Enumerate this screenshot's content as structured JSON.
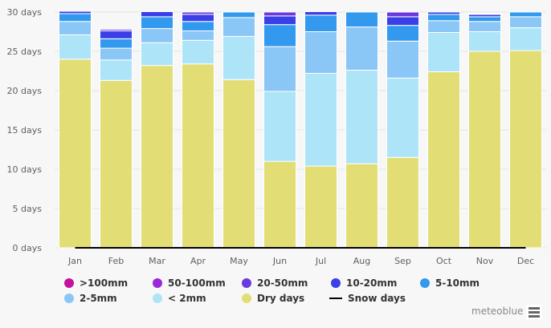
{
  "chart_data": {
    "type": "bar",
    "stacked": true,
    "title": "",
    "xlabel": "",
    "ylabel": "",
    "ylim": [
      0,
      30
    ],
    "yticks": [
      0,
      5,
      10,
      15,
      20,
      25,
      30
    ],
    "ytick_suffix": " days",
    "ytick_labels": [
      "0 days",
      "5 days",
      "10 days",
      "15 days",
      "20 days",
      "25 days",
      "30 days"
    ],
    "grid": true,
    "legend_position": "bottom",
    "categories": [
      "Jan",
      "Feb",
      "Mar",
      "Apr",
      "May",
      "Jun",
      "Jul",
      "Aug",
      "Sep",
      "Oct",
      "Nov",
      "Dec"
    ],
    "series": [
      {
        "name": "Dry days",
        "color": "#e2de75",
        "values": [
          24.0,
          21.3,
          23.2,
          23.4,
          21.4,
          11.0,
          10.4,
          10.7,
          11.5,
          22.4,
          25.0,
          25.1
        ]
      },
      {
        "name": "< 2mm",
        "color": "#ade4f7",
        "values": [
          3.1,
          2.6,
          2.9,
          3.0,
          5.5,
          8.9,
          11.8,
          11.9,
          10.1,
          5.0,
          2.5,
          2.9
        ]
      },
      {
        "name": "2-5mm",
        "color": "#8ac6f6",
        "values": [
          1.7,
          1.5,
          1.8,
          1.2,
          2.4,
          5.7,
          5.3,
          5.5,
          4.7,
          1.5,
          1.3,
          1.4
        ]
      },
      {
        "name": "5-10mm",
        "color": "#3299ee",
        "values": [
          1.0,
          1.2,
          1.5,
          1.2,
          0.7,
          2.8,
          2.1,
          1.9,
          2.0,
          0.8,
          0.6,
          0.6
        ]
      },
      {
        "name": "10-20mm",
        "color": "#3a3fe8",
        "values": [
          0.3,
          1.0,
          0.65,
          0.9,
          0.0,
          1.1,
          0.45,
          0.0,
          1.1,
          0.3,
          0.3,
          0.0
        ]
      },
      {
        "name": "20-50mm",
        "color": "#6b3ade",
        "values": [
          0.0,
          0.2,
          0.0,
          0.3,
          0.0,
          0.5,
          0.0,
          0.0,
          0.6,
          0.0,
          0.1,
          0.0
        ]
      },
      {
        "name": "50-100mm",
        "color": "#9b28d9",
        "values": [
          0.0,
          0.0,
          0.0,
          0.05,
          0.0,
          0.0,
          0.0,
          0.0,
          0.0,
          0.0,
          0.05,
          0.0
        ]
      },
      {
        "name": ">100mm",
        "color": "#c4129e",
        "values": [
          0.0,
          0.0,
          0.0,
          0.0,
          0.0,
          0.0,
          0.0,
          0.0,
          0.0,
          0.0,
          0.0,
          0.0
        ]
      }
    ],
    "line_series": {
      "name": "Snow days",
      "color": "#000000",
      "values": [
        0,
        0,
        0,
        0,
        0,
        0,
        0,
        0,
        0,
        0,
        0,
        0
      ]
    }
  },
  "legend": {
    "items": [
      {
        "label": ">100mm",
        "color": "#c4129e",
        "kind": "dot"
      },
      {
        "label": "50-100mm",
        "color": "#9b28d9",
        "kind": "dot"
      },
      {
        "label": "20-50mm",
        "color": "#6b3ade",
        "kind": "dot"
      },
      {
        "label": "10-20mm",
        "color": "#3a3fe8",
        "kind": "dot"
      },
      {
        "label": "5-10mm",
        "color": "#3299ee",
        "kind": "dot"
      },
      {
        "label": "2-5mm",
        "color": "#8ac6f6",
        "kind": "dot"
      },
      {
        "label": "< 2mm",
        "color": "#ade4f7",
        "kind": "dot"
      },
      {
        "label": "Dry days",
        "color": "#e2de75",
        "kind": "dot"
      },
      {
        "label": "Snow days",
        "color": "#000000",
        "kind": "line"
      }
    ]
  },
  "credits": "meteoblue",
  "menu_icon": "hamburger-menu-icon"
}
